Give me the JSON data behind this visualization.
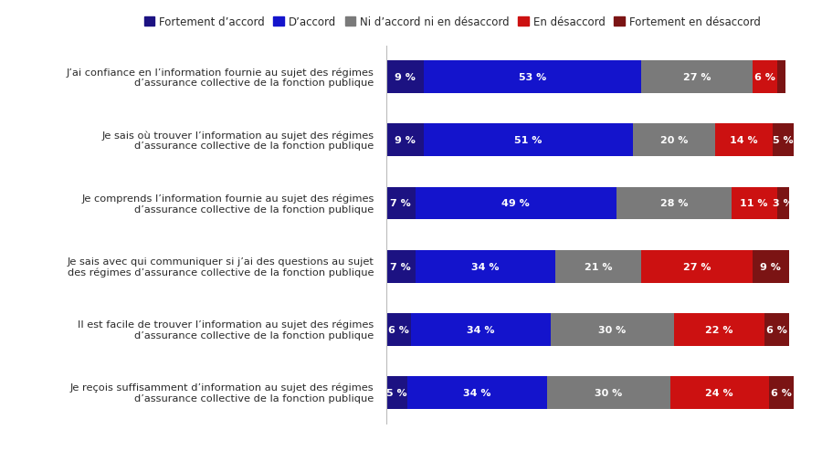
{
  "categories": [
    "J’ai confiance en l’information fournie au sujet des régimes\nd’assurance collective de la fonction publique",
    "Je sais où trouver l’information au sujet des régimes\nd’assurance collective de la fonction publique",
    "Je comprends l’information fournie au sujet des régimes\nd’assurance collective de la fonction publique",
    "Je sais avec qui communiquer si j’ai des questions au sujet\ndes régimes d’assurance collective de la fonction publique",
    "Il est facile de trouver l’information au sujet des régimes\nd’assurance collective de la fonction publique",
    "Je reçois suffisamment d’information au sujet des régimes\nd’assurance collective de la fonction publique"
  ],
  "data": [
    [
      9,
      53,
      27,
      6,
      2
    ],
    [
      9,
      51,
      20,
      14,
      5
    ],
    [
      7,
      49,
      28,
      11,
      3
    ],
    [
      7,
      34,
      21,
      27,
      9
    ],
    [
      6,
      34,
      30,
      22,
      6
    ],
    [
      5,
      34,
      30,
      24,
      6
    ]
  ],
  "colors": [
    "#1c1282",
    "#1414cc",
    "#7a7a7a",
    "#cc1111",
    "#7b1414"
  ],
  "legend_labels": [
    "Fortement d’accord",
    "D’accord",
    "Ni d’accord ni en désaccord",
    "En désaccord",
    "Fortement en désaccord"
  ],
  "background_color": "#ffffff",
  "text_color": "#2a2a2a",
  "bar_text_color": "#ffffff",
  "fontsize_labels": 8.2,
  "fontsize_bar": 8.0,
  "fontsize_legend": 8.5,
  "bar_height": 0.52
}
